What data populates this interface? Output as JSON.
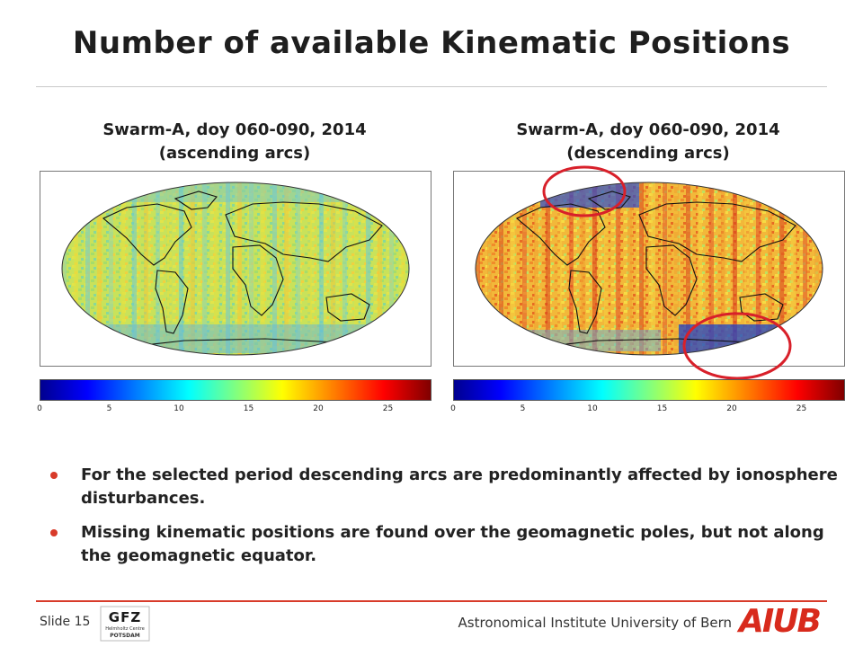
{
  "slide": {
    "title": "Number of available Kinematic Positions",
    "panels": [
      {
        "title_line1": "Swarm-A, doy 060-090, 2014",
        "title_line2": "(ascending arcs)"
      },
      {
        "title_line1": "Swarm-A, doy 060-090, 2014",
        "title_line2": "(descending arcs)"
      }
    ],
    "colorbar": {
      "ticks": [
        "0",
        "5",
        "10",
        "15",
        "20",
        "25"
      ],
      "min": 0,
      "max": 28
    },
    "bullets": [
      "For the selected period descending arcs are predominantly affected by ionosphere disturbances.",
      "Missing kinematic positions are found over the geomagnetic poles, but not along the geomagnetic equator."
    ]
  },
  "footer": {
    "slide_number": "Slide 15",
    "institute": "Astronomical Institute University of Bern",
    "aiub_logo_text": "AIUB",
    "gfz_logo_text": "GFZ",
    "gfz_sub1": "Helmholtz Centre",
    "gfz_sub2": "POTSDAM"
  },
  "colors": {
    "accent": "#d83b2a",
    "highlight_circle": "#d8202a",
    "logo": "#d82a1c"
  }
}
